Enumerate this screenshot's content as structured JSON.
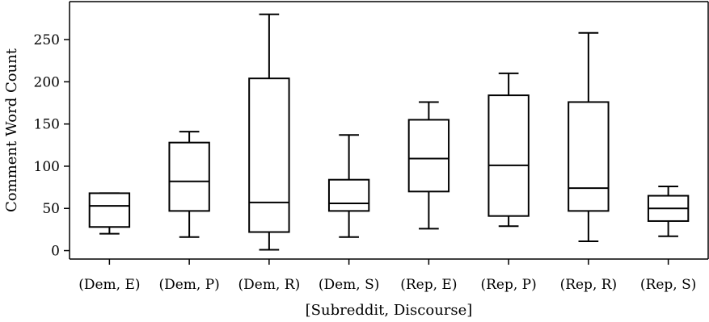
{
  "chart_data": {
    "type": "boxplot",
    "xlabel": "[Subreddit, Discourse]",
    "ylabel": "Comment Word Count",
    "ylim": [
      -10,
      295
    ],
    "yticks": [
      0,
      50,
      100,
      150,
      200,
      250
    ],
    "grid": false,
    "categories": [
      "(Dem, E)",
      "(Dem, P)",
      "(Dem, R)",
      "(Dem, S)",
      "(Rep, E)",
      "(Rep, P)",
      "(Rep, R)",
      "(Rep, S)"
    ],
    "boxes": [
      {
        "whislo": 20,
        "q1": 28,
        "med": 53,
        "q3": 68,
        "whishi": 68
      },
      {
        "whislo": 16,
        "q1": 47,
        "med": 82,
        "q3": 128,
        "whishi": 141
      },
      {
        "whislo": 1,
        "q1": 22,
        "med": 57,
        "q3": 204,
        "whishi": 280
      },
      {
        "whislo": 16,
        "q1": 47,
        "med": 56,
        "q3": 84,
        "whishi": 137
      },
      {
        "whislo": 26,
        "q1": 70,
        "med": 109,
        "q3": 155,
        "whishi": 176
      },
      {
        "whislo": 29,
        "q1": 41,
        "med": 101,
        "q3": 184,
        "whishi": 210
      },
      {
        "whislo": 11,
        "q1": 47,
        "med": 74,
        "q3": 176,
        "whishi": 258
      },
      {
        "whislo": 17,
        "q1": 35,
        "med": 50,
        "q3": 65,
        "whishi": 76
      }
    ]
  }
}
